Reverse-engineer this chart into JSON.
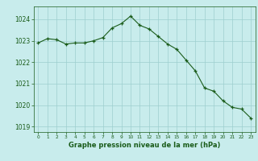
{
  "x": [
    0,
    1,
    2,
    3,
    4,
    5,
    6,
    7,
    8,
    9,
    10,
    11,
    12,
    13,
    14,
    15,
    16,
    17,
    18,
    19,
    20,
    21,
    22,
    23
  ],
  "y": [
    1022.9,
    1023.1,
    1023.05,
    1022.85,
    1022.9,
    1022.9,
    1023.0,
    1023.15,
    1023.6,
    1023.8,
    1024.15,
    1023.72,
    1023.55,
    1023.2,
    1022.85,
    1022.6,
    1022.1,
    1021.6,
    1020.8,
    1020.65,
    1020.2,
    1019.9,
    1019.82,
    1019.4
  ],
  "line_color": "#1a5c1a",
  "marker_color": "#1a5c1a",
  "bg_color": "#c8ecec",
  "grid_color": "#9dcfcf",
  "label_color": "#1a5c1a",
  "xlabel": "Graphe pression niveau de la mer (hPa)",
  "ylim_min": 1018.75,
  "ylim_max": 1024.6,
  "yticks": [
    1019,
    1020,
    1021,
    1022,
    1023,
    1024
  ],
  "xtick_labels": [
    "0",
    "1",
    "2",
    "3",
    "4",
    "5",
    "6",
    "7",
    "8",
    "9",
    "10",
    "11",
    "12",
    "13",
    "14",
    "15",
    "16",
    "17",
    "18",
    "19",
    "20",
    "21",
    "22",
    "23"
  ],
  "ylabel_fontsize": 5.5,
  "xlabel_fontsize": 6.0,
  "xtick_fontsize": 4.2,
  "ytick_fontsize": 5.5
}
